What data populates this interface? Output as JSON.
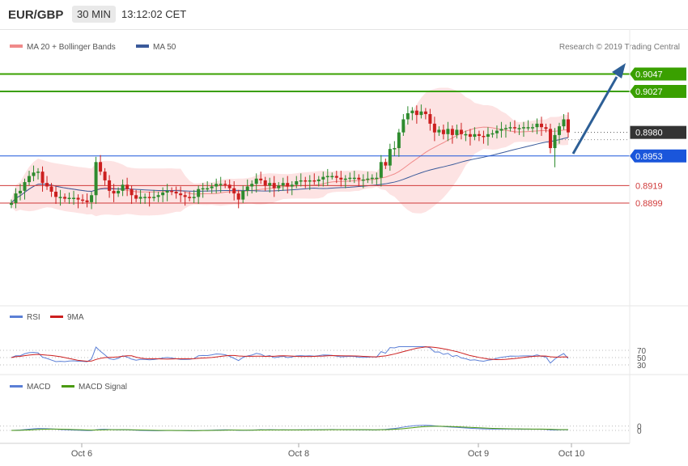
{
  "header": {
    "pair": "EUR/GBP",
    "timeframe": "30 MIN",
    "time": "13:12:02 CET"
  },
  "colors": {
    "ma20": "#f08a8a",
    "ma50": "#3a5a9a",
    "band_fill": "#fde3e3",
    "up_candle": "#2e8b2e",
    "down_candle": "#cc1f1f",
    "target": "#3aa000",
    "support_blue": "#1a56db",
    "support_red": "#d03a3a",
    "current": "#333333",
    "arrow": "#2d5f96",
    "rsi": "#5b7fd6",
    "rsi_ma": "#cc1f1f",
    "macd": "#5b7fd6",
    "macd_signal": "#4a9a10"
  },
  "legend": {
    "ma20_label": "MA 20 + Bollinger Bands",
    "ma50_label": "MA 50",
    "copyright": "Research © 2019 Trading Central"
  },
  "chart_data": [
    {
      "type": "candlestick",
      "panel": "price",
      "levels": [
        {
          "value": 0.9047,
          "label": "0.9047",
          "kind": "target"
        },
        {
          "value": 0.9027,
          "label": "0.9027",
          "kind": "target"
        },
        {
          "value": 0.898,
          "label": "0.8980",
          "kind": "current"
        },
        {
          "value": 0.8953,
          "label": "0.8953",
          "kind": "pivot"
        },
        {
          "value": 0.8919,
          "label": "0.8919",
          "kind": "support"
        },
        {
          "value": 0.8899,
          "label": "0.8899",
          "kind": "support"
        }
      ],
      "x_ticks": [
        "Oct 6",
        "Oct 8",
        "Oct 9",
        "Oct 10"
      ],
      "series": [
        {
          "name": "MA 20 + Bollinger Bands"
        },
        {
          "name": "MA 50"
        }
      ],
      "closes": [
        0.8899,
        0.891,
        0.8913,
        0.8923,
        0.893,
        0.8934,
        0.8935,
        0.8922,
        0.8918,
        0.8912,
        0.8906,
        0.8906,
        0.8904,
        0.8905,
        0.8905,
        0.8903,
        0.8902,
        0.89,
        0.8908,
        0.8946,
        0.8935,
        0.8925,
        0.8913,
        0.891,
        0.8913,
        0.892,
        0.8915,
        0.8908,
        0.8904,
        0.8906,
        0.8906,
        0.8905,
        0.8906,
        0.8908,
        0.8911,
        0.8913,
        0.8912,
        0.891,
        0.8908,
        0.8906,
        0.8905,
        0.8906,
        0.8915,
        0.8916,
        0.8916,
        0.8918,
        0.8921,
        0.8921,
        0.892,
        0.8916,
        0.891,
        0.8903,
        0.8913,
        0.8918,
        0.8921,
        0.8927,
        0.8925,
        0.8919,
        0.8922,
        0.8916,
        0.8919,
        0.8922,
        0.8918,
        0.892,
        0.8924,
        0.8925,
        0.8924,
        0.8925,
        0.8924,
        0.8926,
        0.8929,
        0.893,
        0.893,
        0.8928,
        0.8926,
        0.8927,
        0.8928,
        0.8928,
        0.8926,
        0.8926,
        0.8927,
        0.8928,
        0.8928,
        0.8946,
        0.8942,
        0.8961,
        0.8962,
        0.898,
        0.8995,
        0.9002,
        0.9005,
        0.9,
        0.9004,
        0.9001,
        0.899,
        0.898,
        0.8983,
        0.8978,
        0.8984,
        0.8977,
        0.8983,
        0.8978,
        0.8978,
        0.8975,
        0.8978,
        0.8976,
        0.8975,
        0.8978,
        0.8979,
        0.8982,
        0.8984,
        0.8985,
        0.8986,
        0.8985,
        0.8985,
        0.8986,
        0.8986,
        0.8986,
        0.899,
        0.8986,
        0.8984,
        0.8962,
        0.8977,
        0.8987,
        0.8995,
        0.898
      ]
    },
    {
      "type": "line",
      "panel": "rsi",
      "series": [
        {
          "name": "RSI"
        },
        {
          "name": "9MA"
        }
      ],
      "y_ticks": [
        70,
        50,
        30
      ]
    },
    {
      "type": "line",
      "panel": "macd",
      "series": [
        {
          "name": "MACD"
        },
        {
          "name": "MACD Signal"
        }
      ],
      "y_ticks": [
        0,
        0
      ]
    }
  ]
}
